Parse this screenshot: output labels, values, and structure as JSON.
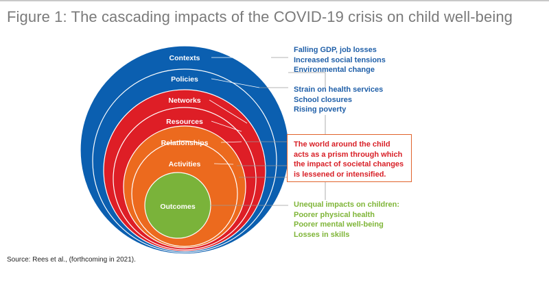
{
  "figure": {
    "title": "Figure 1: The cascading impacts of the COVID-19 crisis on child well-being",
    "source": "Source: Rees et al., (forthcoming in 2021)."
  },
  "layers": [
    {
      "label": "Contexts",
      "color": "#0b5fb0"
    },
    {
      "label": "Policies",
      "color": "#0b5fb0"
    },
    {
      "label": "Networks",
      "color": "#de1e26"
    },
    {
      "label": "Resources",
      "color": "#de1e26"
    },
    {
      "label": "Relationships",
      "color": "#ec6a1e"
    },
    {
      "label": "Activities",
      "color": "#ec6a1e"
    },
    {
      "label": "Outcomes",
      "color": "#7ab33a"
    }
  ],
  "context_impacts": [
    "Falling GDP, job losses",
    "Increased social tensions",
    "Environmental change"
  ],
  "policy_impacts": [
    "Strain on health services",
    "School closures",
    "Rising poverty"
  ],
  "prism_note": [
    "The world around the child",
    "acts as a prism through which",
    "the impact of societal changes",
    "is lessened or intensified."
  ],
  "outcome_impacts": [
    "Unequal impacts on children:",
    "Poorer physical health",
    "Poorer mental well-being",
    "Losses in skills"
  ],
  "colors": {
    "blue_text": "#1f5fa8",
    "red_text": "#d81f26",
    "green_text": "#7fb538",
    "callout_border": "#e0622a"
  }
}
